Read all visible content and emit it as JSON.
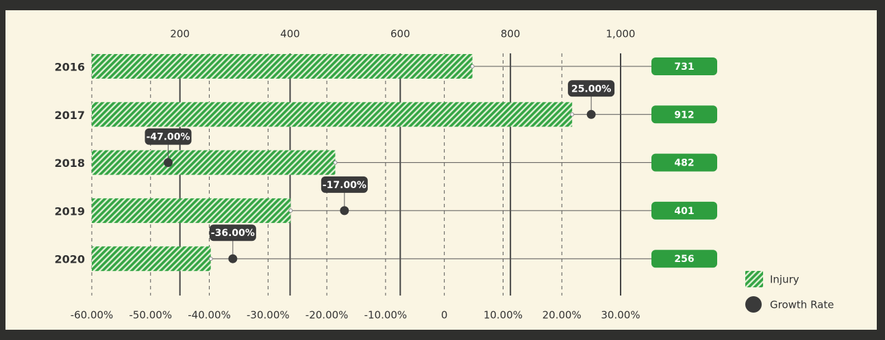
{
  "chart_data": {
    "type": "bar",
    "categories": [
      "2016",
      "2017",
      "2018",
      "2019",
      "2020"
    ],
    "series": [
      {
        "name": "Injury",
        "color": "#35a545",
        "label_color": "#2e9e3f",
        "values": [
          731,
          912,
          482,
          401,
          256
        ]
      },
      {
        "name": "Growth Rate",
        "color": "#3a3a3a",
        "axis": "x2",
        "values": [
          null,
          25,
          -47,
          -17,
          -36
        ],
        "value_labels": [
          null,
          "25.00%",
          "-47.00%",
          "-17.00%",
          "-36.00%"
        ]
      }
    ],
    "xlim": [
      40,
      1000
    ],
    "xticks": [
      200,
      400,
      600,
      800,
      {
        "value": 1000,
        "label": "1,000"
      }
    ],
    "x2lim": [
      -60,
      30
    ],
    "x2ticks": [
      {
        "value": -60,
        "label": "-60.00%"
      },
      {
        "value": -50,
        "label": "-50.00%"
      },
      {
        "value": -40,
        "label": "-40.00%"
      },
      {
        "value": -30,
        "label": "-30.00%"
      },
      {
        "value": -20,
        "label": "-20.00%"
      },
      {
        "value": -10,
        "label": "-10.00%"
      },
      0,
      {
        "value": 10,
        "label": "10.00%"
      },
      {
        "value": 20,
        "label": "20.00%"
      },
      {
        "value": 30,
        "label": "30.00%"
      }
    ],
    "grid": true
  }
}
